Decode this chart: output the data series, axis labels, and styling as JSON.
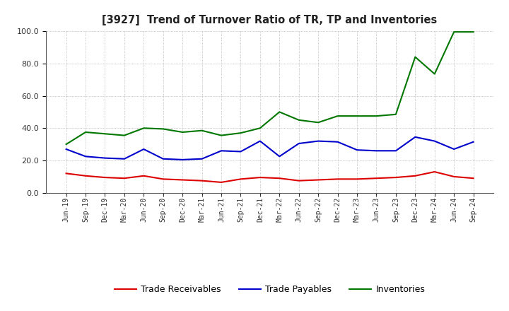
{
  "title": "[3927]  Trend of Turnover Ratio of TR, TP and Inventories",
  "x_labels": [
    "Jun-19",
    "Sep-19",
    "Dec-19",
    "Mar-20",
    "Jun-20",
    "Sep-20",
    "Dec-20",
    "Mar-21",
    "Jun-21",
    "Sep-21",
    "Dec-21",
    "Mar-22",
    "Jun-22",
    "Sep-22",
    "Dec-22",
    "Mar-23",
    "Jun-23",
    "Sep-23",
    "Dec-23",
    "Mar-24",
    "Jun-24",
    "Sep-24"
  ],
  "trade_receivables": [
    12.0,
    10.5,
    9.5,
    9.0,
    10.5,
    8.5,
    8.0,
    7.5,
    6.5,
    8.5,
    9.5,
    9.0,
    7.5,
    8.0,
    8.5,
    8.5,
    9.0,
    9.5,
    10.5,
    13.0,
    10.0,
    9.0
  ],
  "trade_payables": [
    27.0,
    22.5,
    21.5,
    21.0,
    27.0,
    21.0,
    20.5,
    21.0,
    26.0,
    25.5,
    32.0,
    22.5,
    30.5,
    32.0,
    31.5,
    26.5,
    26.0,
    26.0,
    34.5,
    32.0,
    27.0,
    31.5
  ],
  "inventories": [
    30.0,
    37.5,
    36.5,
    35.5,
    40.0,
    39.5,
    37.5,
    38.5,
    35.5,
    37.0,
    40.0,
    50.0,
    45.0,
    43.5,
    47.5,
    47.5,
    47.5,
    48.5,
    84.0,
    73.5,
    99.5,
    99.5
  ],
  "tr_color": "#dd0000",
  "tp_color": "#0000cc",
  "inv_color": "#007700",
  "background_color": "#ffffff",
  "grid_color": "#aaaaaa",
  "ylim": [
    0.0,
    100.0
  ],
  "yticks": [
    0.0,
    20.0,
    40.0,
    60.0,
    80.0,
    100.0
  ],
  "legend_labels": [
    "Trade Receivables",
    "Trade Payables",
    "Inventories"
  ]
}
